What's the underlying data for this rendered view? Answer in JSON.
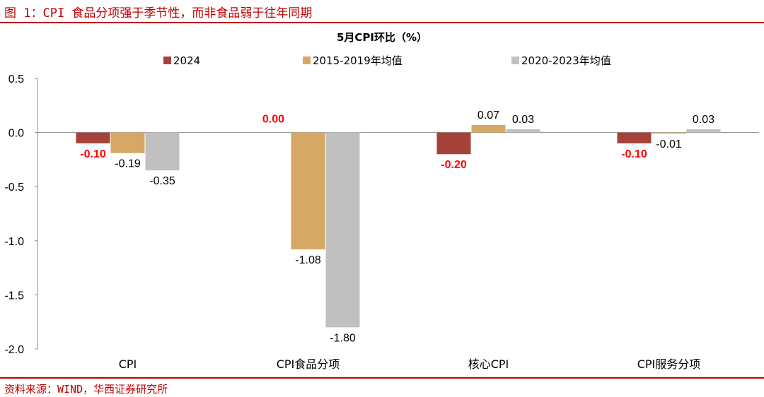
{
  "figure_title": "图 1：CPI 食品分项强于季节性，而非食品弱于往年同期",
  "source": "资料来源：WIND，华西证券研究所",
  "colors": {
    "accent": "#c00000",
    "label_red": "#ff0000"
  },
  "chart_data": {
    "type": "bar",
    "title": "5月CPI环比（%）",
    "xlabel": "",
    "ylabel": "",
    "categories": [
      "CPI",
      "CPI食品分项",
      "核心CPI",
      "CPI服务分项"
    ],
    "series": [
      {
        "name": "2024",
        "color": "#a5433a",
        "values": [
          -0.1,
          0.0,
          -0.2,
          -0.1
        ],
        "labels": [
          "-0.10",
          "0.00",
          "-0.20",
          "-0.10"
        ]
      },
      {
        "name": "2015-2019年均值",
        "color": "#d5a965",
        "values": [
          -0.19,
          -1.08,
          0.07,
          -0.01
        ],
        "labels": [
          "-0.19",
          "-1.08",
          "0.07",
          "-0.01"
        ]
      },
      {
        "name": "2020-2023年均值",
        "color": "#c0c0c0",
        "values": [
          -0.35,
          -1.8,
          0.03,
          0.03
        ],
        "labels": [
          "-0.35",
          "-1.80",
          "0.03",
          "0.03"
        ]
      }
    ],
    "yticks": [
      "0.5",
      "0.0",
      "-0.5",
      "-1.0",
      "-1.5",
      "-2.0"
    ],
    "ylim": [
      -2.0,
      0.5
    ],
    "grid": false,
    "legend": "top-center"
  }
}
